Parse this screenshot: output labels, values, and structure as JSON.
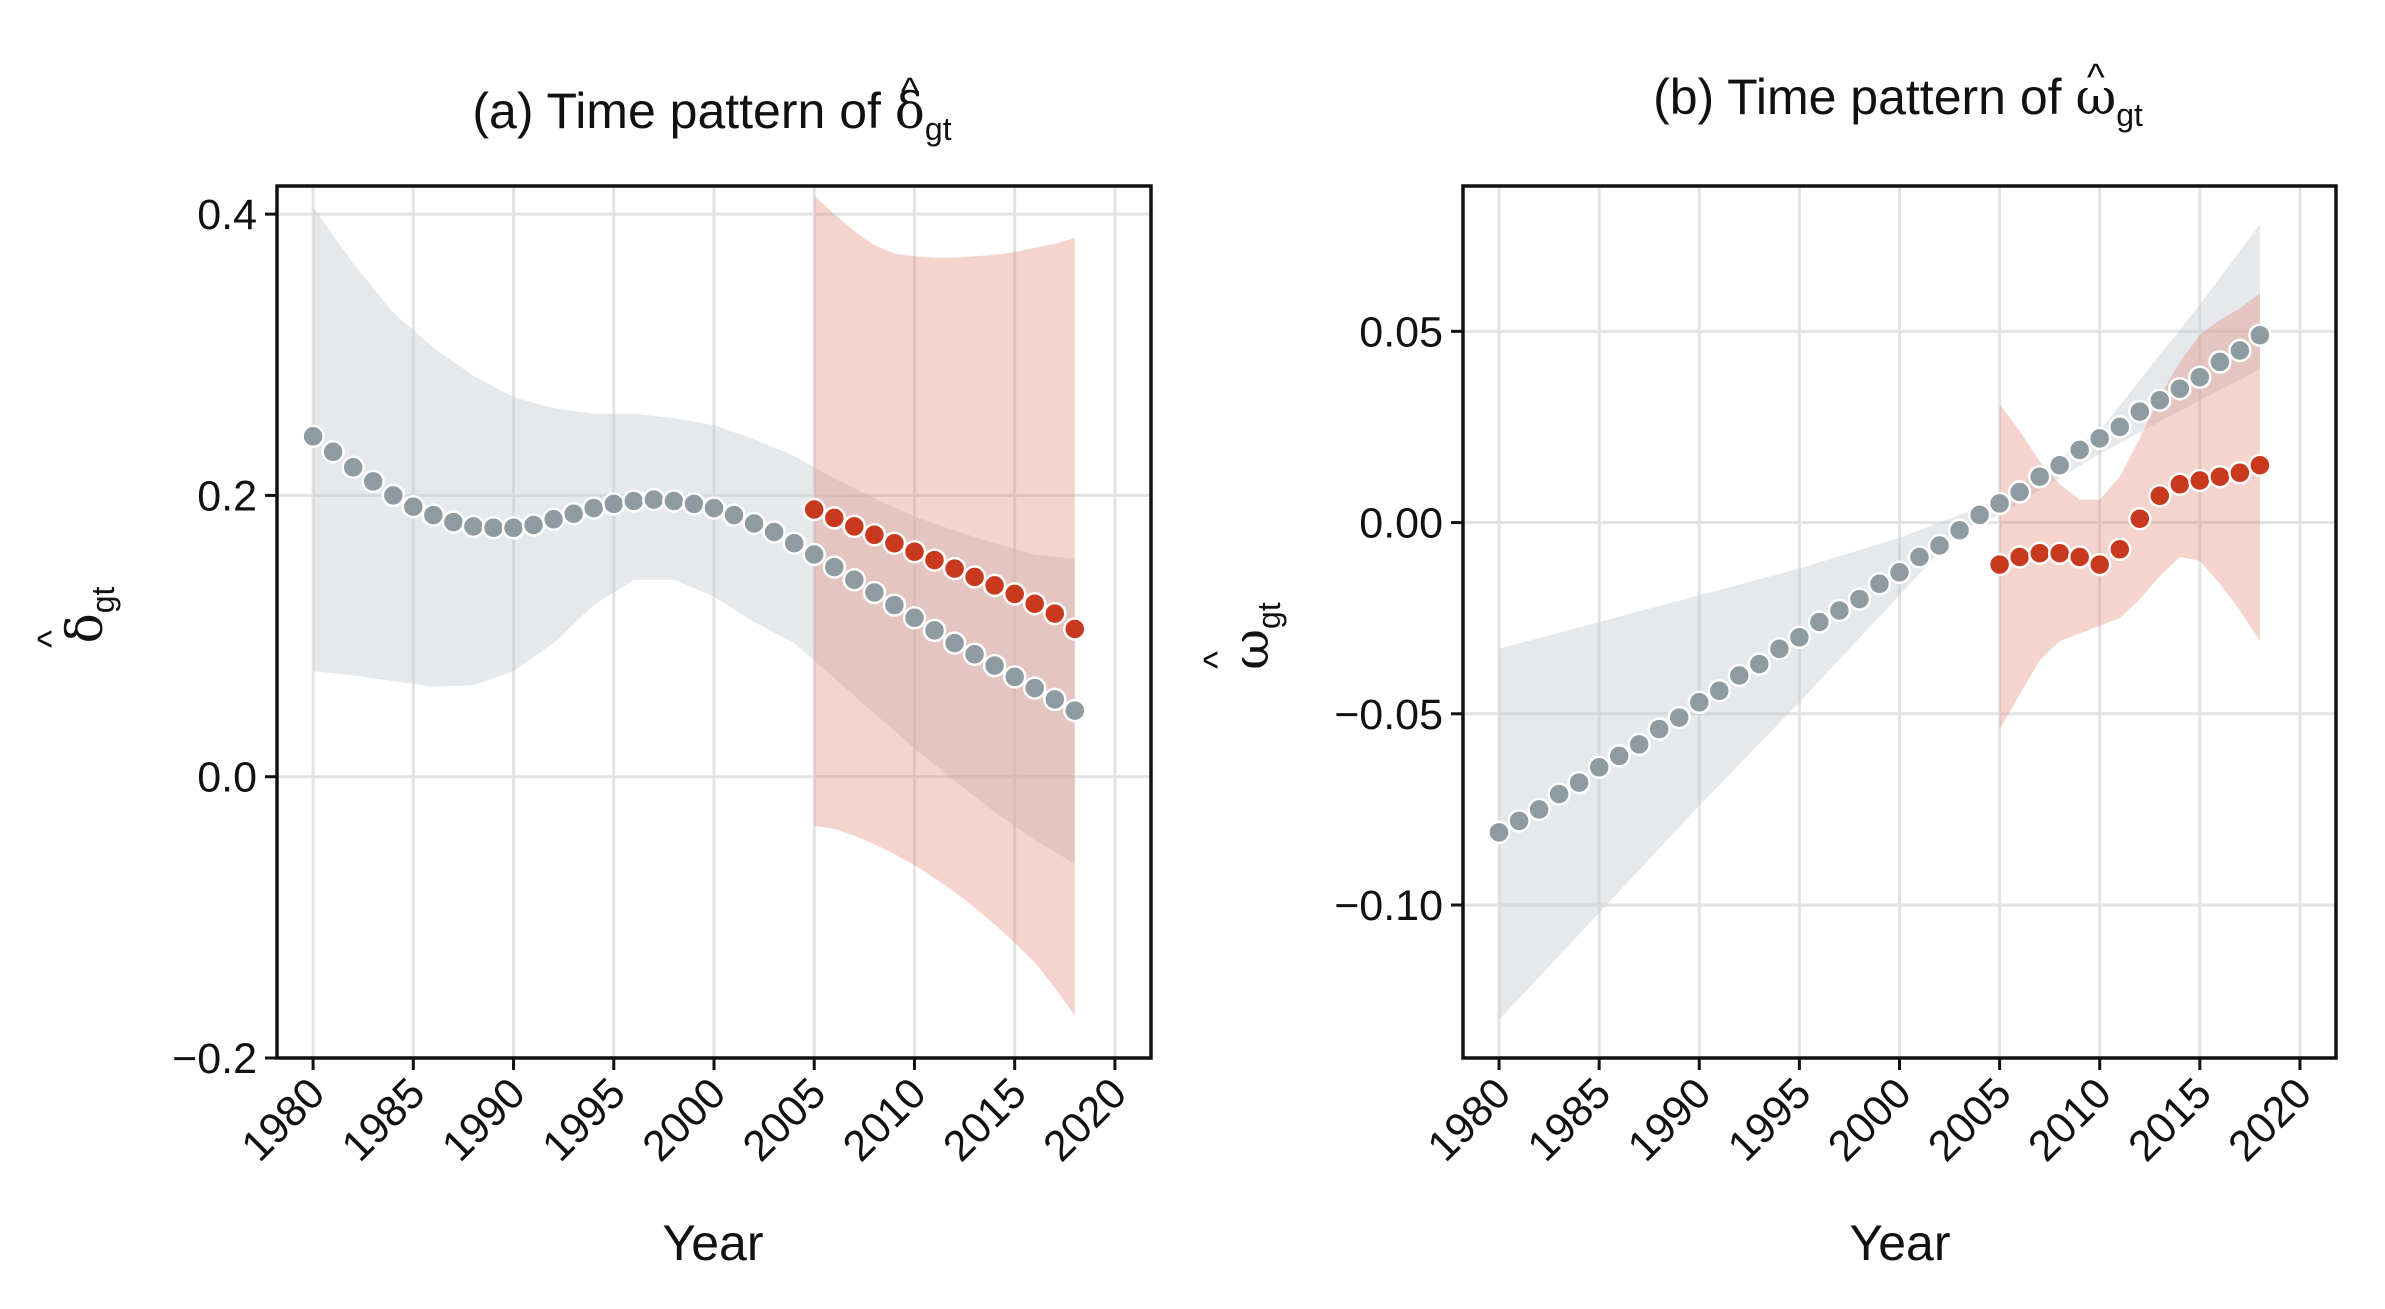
{
  "chart_data": [
    {
      "type": "scatter",
      "title": "(a) Time pattern of ",
      "title_symbol": "δ",
      "title_symbol_hat": "^",
      "title_symbol_sub": "gt",
      "xlabel": "Year",
      "ylabel_symbol": "δ",
      "ylabel_hat": "^",
      "ylabel_sub": "gt",
      "xlim": [
        1978.2,
        2021.8
      ],
      "ylim": [
        -0.2,
        0.42
      ],
      "x_ticks": [
        1980,
        1985,
        1990,
        1995,
        2000,
        2005,
        2010,
        2015,
        2020
      ],
      "x_tick_labels": [
        "1980",
        "1985",
        "1990",
        "1995",
        "2000",
        "2005",
        "2010",
        "2015",
        "2020"
      ],
      "y_ticks": [
        -0.2,
        0.0,
        0.2,
        0.4
      ],
      "y_tick_labels": [
        "−0.2",
        "0.0",
        "0.2",
        "0.4"
      ],
      "grid": true,
      "bands": [
        {
          "color": "#c4cbd1",
          "opacity": 0.42,
          "x": [
            1980,
            1982,
            1984,
            1986,
            1988,
            1990,
            1992,
            1994,
            1996,
            1998,
            2000,
            2002,
            2004,
            2006,
            2008,
            2010,
            2012,
            2014,
            2016,
            2018
          ],
          "upper": [
            0.405,
            0.365,
            0.33,
            0.305,
            0.285,
            0.27,
            0.262,
            0.258,
            0.258,
            0.255,
            0.25,
            0.24,
            0.228,
            0.212,
            0.198,
            0.185,
            0.175,
            0.166,
            0.158,
            0.155
          ],
          "lower": [
            0.075,
            0.072,
            0.068,
            0.064,
            0.065,
            0.075,
            0.095,
            0.122,
            0.14,
            0.14,
            0.128,
            0.11,
            0.095,
            0.07,
            0.045,
            0.02,
            -0.003,
            -0.025,
            -0.045,
            -0.062
          ]
        },
        {
          "color": "#e38470",
          "opacity": 0.35,
          "x": [
            2005,
            2006,
            2007,
            2008,
            2009,
            2010,
            2011,
            2012,
            2013,
            2014,
            2015,
            2016,
            2017,
            2018
          ],
          "upper": [
            0.413,
            0.4,
            0.388,
            0.378,
            0.372,
            0.37,
            0.369,
            0.369,
            0.37,
            0.371,
            0.373,
            0.376,
            0.379,
            0.383
          ],
          "lower": [
            -0.035,
            -0.037,
            -0.042,
            -0.048,
            -0.055,
            -0.063,
            -0.072,
            -0.082,
            -0.093,
            -0.105,
            -0.118,
            -0.132,
            -0.15,
            -0.17
          ]
        }
      ],
      "series": [
        {
          "color": "#8e9ca2",
          "x": [
            1980,
            1981,
            1982,
            1983,
            1984,
            1985,
            1986,
            1987,
            1988,
            1989,
            1990,
            1991,
            1992,
            1993,
            1994,
            1995,
            1996,
            1997,
            1998,
            1999,
            2000,
            2001,
            2002,
            2003,
            2004,
            2005,
            2006,
            2007,
            2008,
            2009,
            2010,
            2011,
            2012,
            2013,
            2014,
            2015,
            2016,
            2017,
            2018
          ],
          "y": [
            0.242,
            0.231,
            0.22,
            0.21,
            0.2,
            0.192,
            0.186,
            0.181,
            0.178,
            0.177,
            0.177,
            0.179,
            0.183,
            0.187,
            0.191,
            0.194,
            0.196,
            0.197,
            0.196,
            0.194,
            0.191,
            0.186,
            0.18,
            0.174,
            0.166,
            0.158,
            0.149,
            0.14,
            0.131,
            0.122,
            0.113,
            0.104,
            0.095,
            0.087,
            0.079,
            0.071,
            0.063,
            0.055,
            0.047
          ]
        },
        {
          "color": "#c9391e",
          "x": [
            2005,
            2006,
            2007,
            2008,
            2009,
            2010,
            2011,
            2012,
            2013,
            2014,
            2015,
            2016,
            2017,
            2018
          ],
          "y": [
            0.19,
            0.184,
            0.178,
            0.172,
            0.166,
            0.16,
            0.154,
            0.148,
            0.142,
            0.136,
            0.13,
            0.123,
            0.116,
            0.105
          ]
        }
      ]
    },
    {
      "type": "scatter",
      "title": "(b) Time pattern of ",
      "title_symbol": "ω",
      "title_symbol_hat": "^",
      "title_symbol_sub": "gt",
      "xlabel": "Year",
      "ylabel_symbol": "ω",
      "ylabel_hat": "^",
      "ylabel_sub": "gt",
      "xlim": [
        1978.2,
        2021.8
      ],
      "ylim": [
        -0.14,
        0.088
      ],
      "x_ticks": [
        1980,
        1985,
        1990,
        1995,
        2000,
        2005,
        2010,
        2015,
        2020
      ],
      "x_tick_labels": [
        "1980",
        "1985",
        "1990",
        "1995",
        "2000",
        "2005",
        "2010",
        "2015",
        "2020"
      ],
      "y_ticks": [
        -0.1,
        -0.05,
        0.0,
        0.05
      ],
      "y_tick_labels": [
        "−0.10",
        "−0.05",
        "0.00",
        "0.05"
      ],
      "grid": true,
      "bands": [
        {
          "color": "#c4cbd1",
          "opacity": 0.42,
          "x": [
            1980,
            1985,
            1990,
            1995,
            2000,
            2003,
            2005,
            2010,
            2015,
            2018
          ],
          "upper": [
            -0.033,
            -0.026,
            -0.019,
            -0.012,
            -0.004,
            0.002,
            0.006,
            0.024,
            0.057,
            0.078
          ],
          "lower": [
            -0.13,
            -0.102,
            -0.074,
            -0.047,
            -0.019,
            -0.002,
            0.002,
            0.018,
            0.032,
            0.04
          ]
        },
        {
          "color": "#e38470",
          "opacity": 0.35,
          "x": [
            2005,
            2006,
            2007,
            2008,
            2009,
            2010,
            2011,
            2012,
            2013,
            2014,
            2015,
            2016,
            2017,
            2018
          ],
          "upper": [
            0.031,
            0.024,
            0.016,
            0.01,
            0.006,
            0.006,
            0.012,
            0.022,
            0.033,
            0.042,
            0.049,
            0.053,
            0.056,
            0.06
          ],
          "lower": [
            -0.054,
            -0.045,
            -0.036,
            -0.031,
            -0.029,
            -0.027,
            -0.025,
            -0.02,
            -0.014,
            -0.009,
            -0.01,
            -0.016,
            -0.023,
            -0.031
          ]
        }
      ],
      "series": [
        {
          "color": "#8e9ca2",
          "x": [
            1980,
            1981,
            1982,
            1983,
            1984,
            1985,
            1986,
            1987,
            1988,
            1989,
            1990,
            1991,
            1992,
            1993,
            1994,
            1995,
            1996,
            1997,
            1998,
            1999,
            2000,
            2001,
            2002,
            2003,
            2004,
            2005,
            2006,
            2007,
            2008,
            2009,
            2010,
            2011,
            2012,
            2013,
            2014,
            2015,
            2016,
            2017,
            2018
          ],
          "y": [
            -0.081,
            -0.078,
            -0.075,
            -0.071,
            -0.068,
            -0.064,
            -0.061,
            -0.058,
            -0.054,
            -0.051,
            -0.047,
            -0.044,
            -0.04,
            -0.037,
            -0.033,
            -0.03,
            -0.026,
            -0.023,
            -0.02,
            -0.016,
            -0.013,
            -0.009,
            -0.006,
            -0.002,
            0.002,
            0.005,
            0.008,
            0.012,
            0.015,
            0.019,
            0.022,
            0.025,
            0.029,
            0.032,
            0.035,
            0.038,
            0.042,
            0.045,
            0.049
          ]
        },
        {
          "color": "#c9391e",
          "x": [
            2005,
            2006,
            2007,
            2008,
            2009,
            2010,
            2011,
            2012,
            2013,
            2014,
            2015,
            2016,
            2017,
            2018
          ],
          "y": [
            -0.011,
            -0.009,
            -0.008,
            -0.008,
            -0.009,
            -0.011,
            -0.007,
            0.001,
            0.007,
            0.01,
            0.011,
            0.012,
            0.013,
            0.015
          ]
        }
      ]
    }
  ]
}
